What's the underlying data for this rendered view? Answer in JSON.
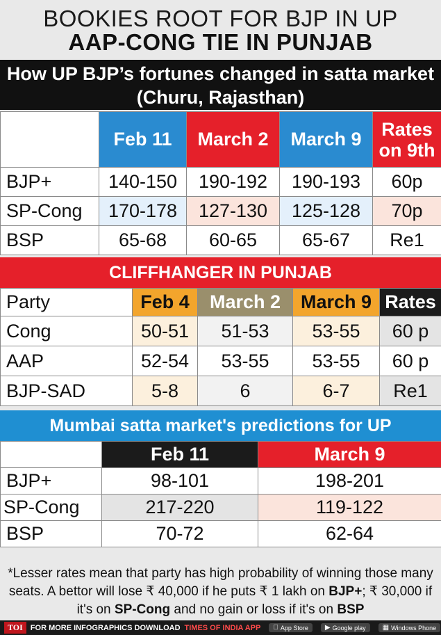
{
  "header": {
    "line1": "BOOKIES ROOT FOR BJP IN UP",
    "line2": "AAP-CONG TIE IN PUNJAB"
  },
  "up_section": {
    "title_line1": "How UP BJP’s fortunes changed in satta market",
    "title_line2": "(Churu, Rajasthan)",
    "columns": [
      "Feb 11",
      "March 2",
      "March 9",
      "Rates on 9th"
    ],
    "rows": [
      {
        "party": "BJP+",
        "values": [
          "140-150",
          "190-192",
          "190-193",
          "60p"
        ]
      },
      {
        "party": "SP-Cong",
        "values": [
          "170-178",
          "127-130",
          "125-128",
          "70p"
        ]
      },
      {
        "party": "BSP",
        "values": [
          "65-68",
          "60-65",
          "65-67",
          "Re1"
        ]
      }
    ]
  },
  "punjab_section": {
    "title": "CLIFFHANGER IN PUNJAB",
    "first_col": "Party",
    "columns": [
      "Feb 4",
      "March 2",
      "March 9",
      "Rates"
    ],
    "rows": [
      {
        "party": "Cong",
        "values": [
          "50-51",
          "51-53",
          "53-55",
          "60 p"
        ]
      },
      {
        "party": "AAP",
        "values": [
          "52-54",
          "53-55",
          "53-55",
          "60 p"
        ]
      },
      {
        "party": "BJP-SAD",
        "values": [
          "5-8",
          "6",
          "6-7",
          "Re1"
        ]
      }
    ]
  },
  "mumbai_section": {
    "title": "Mumbai satta market's predictions for UP",
    "columns": [
      "Feb 11",
      "March 9"
    ],
    "rows": [
      {
        "party": "BJP+",
        "values": [
          "98-101",
          "198-201"
        ]
      },
      {
        "party": "SP-Cong",
        "values": [
          "217-220",
          "119-122"
        ]
      },
      {
        "party": "BSP",
        "values": [
          "70-72",
          "62-64"
        ]
      }
    ]
  },
  "note": {
    "part1": "*Lesser rates mean that party has high probability of winning those many seats. A bettor will lose ₹ 40,000 if he puts ₹ 1 lakh on ",
    "bjp": "BJP+",
    "part2": "; ₹ 30,000 if it's on ",
    "spcong": "SP-Cong",
    "part3": " and no gain or loss if it's on ",
    "bsp": "BSP"
  },
  "footer": {
    "logo": "TOI",
    "text": "FOR MORE  INFOGRAPHICS DOWNLOAD",
    "app": "TIMES OF INDIA  APP",
    "stores": [
      {
        "icon": "apple-icon",
        "label": "App Store"
      },
      {
        "icon": "play-icon",
        "label": "Google play"
      },
      {
        "icon": "windows-icon",
        "label": "Windows Phone"
      }
    ]
  }
}
